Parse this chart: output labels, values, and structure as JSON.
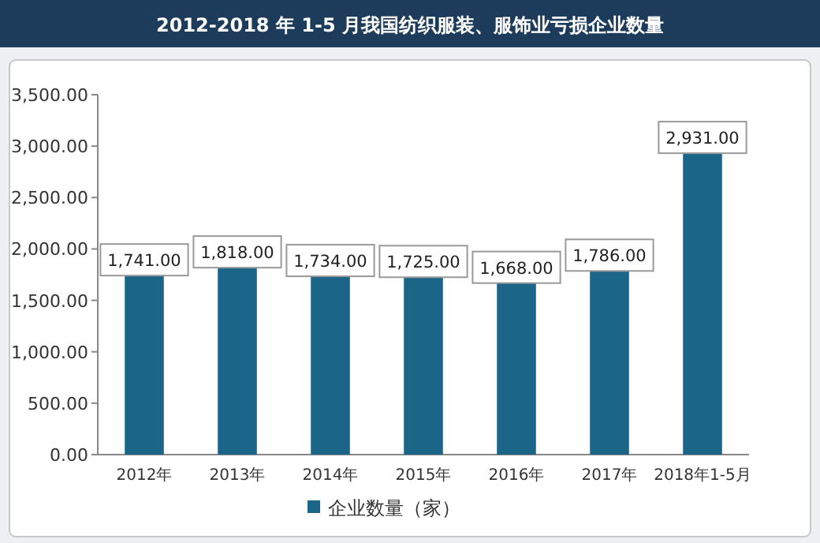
{
  "chart_data": {
    "type": "bar",
    "title": "2012-2018 年 1-5 月我国纺织服装、服饰业亏损企业数量",
    "categories": [
      "2012年",
      "2013年",
      "2014年",
      "2015年",
      "2016年",
      "2017年",
      "2018年1-5月"
    ],
    "series": [
      {
        "name": "企业数量（家）",
        "color": "#1b6688",
        "values": [
          1741,
          1818,
          1734,
          1725,
          1668,
          1786,
          2931
        ]
      }
    ],
    "value_labels": [
      "1,741.00",
      "1,818.00",
      "1,734.00",
      "1,725.00",
      "1,668.00",
      "1,786.00",
      "2,931.00"
    ],
    "ylim": [
      0,
      3500
    ],
    "yticks": [
      {
        "value": 0,
        "label": "0.00"
      },
      {
        "value": 500,
        "label": "500.00"
      },
      {
        "value": 1000,
        "label": "1,000.00"
      },
      {
        "value": 1500,
        "label": "1,500.00"
      },
      {
        "value": 2000,
        "label": "2,000.00"
      },
      {
        "value": 2500,
        "label": "2,500.00"
      },
      {
        "value": 3000,
        "label": "3,000.00"
      },
      {
        "value": 3500,
        "label": "3,500.00"
      }
    ],
    "grid": false,
    "legend": "bottom"
  }
}
